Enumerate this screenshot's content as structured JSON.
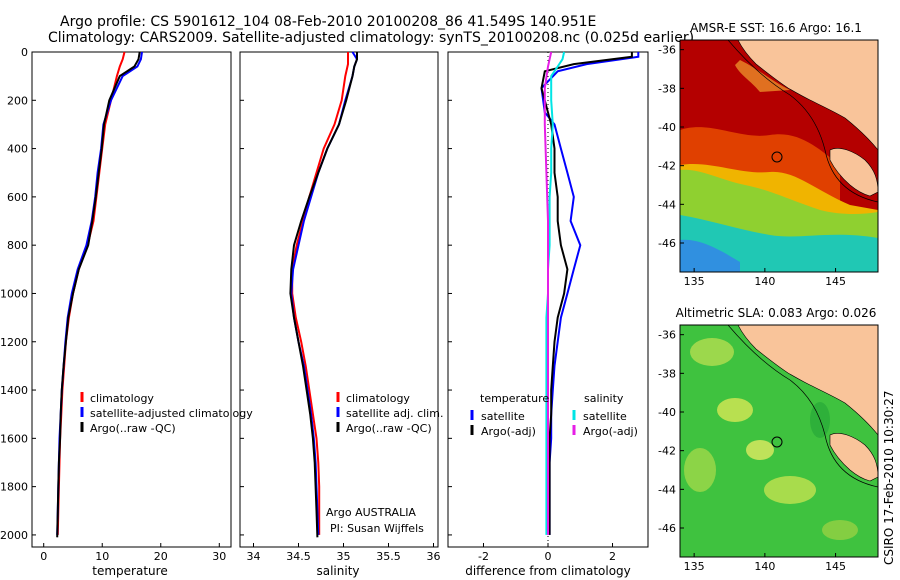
{
  "header": {
    "line1": "Argo profile: CS 5901612_104 08-Feb-2010 20100208_86 41.549S 140.951E",
    "line2": "Climatology: CARS2009. Satellite-adjusted climatology: synTS_20100208.nc (0.025d earlier)"
  },
  "credit": "CSIRO 17-Feb-2010 10:30:27",
  "colors": {
    "climatology": "#ff0000",
    "satellite": "#0000ff",
    "argo": "#000000",
    "satellite_diff_sal": "#00e5e5",
    "argo_diff_sal": "#e61ee6"
  },
  "chart_data": [
    {
      "type": "line",
      "id": "temperature",
      "xlabel": "temperature",
      "xlim": [
        -2,
        32
      ],
      "ylim": [
        0,
        2050
      ],
      "y_reversed": true,
      "xticks": [
        0,
        10,
        20,
        30
      ],
      "yticks": [
        0,
        200,
        400,
        600,
        800,
        1000,
        1200,
        1400,
        1600,
        1800,
        2000
      ],
      "legend": [
        "climatology",
        "satellite-adjusted climatology",
        "Argo(..raw -QC)"
      ],
      "series": [
        {
          "name": "climatology",
          "color": "#ff0000",
          "points": [
            [
              13.8,
              0
            ],
            [
              13.5,
              30
            ],
            [
              13,
              60
            ],
            [
              12.5,
              100
            ],
            [
              11.5,
              200
            ],
            [
              10.5,
              300
            ],
            [
              10,
              400
            ],
            [
              9.5,
              500
            ],
            [
              9,
              600
            ],
            [
              8.5,
              700
            ],
            [
              7.5,
              800
            ],
            [
              6,
              900
            ],
            [
              5,
              1000
            ],
            [
              4.3,
              1100
            ],
            [
              3.8,
              1200
            ],
            [
              3.5,
              1300
            ],
            [
              3.2,
              1400
            ],
            [
              3,
              1500
            ],
            [
              2.8,
              1600
            ],
            [
              2.7,
              1700
            ],
            [
              2.6,
              1800
            ],
            [
              2.5,
              1900
            ],
            [
              2.4,
              2000
            ]
          ]
        },
        {
          "name": "satellite-adjusted climatology",
          "color": "#0000ff",
          "points": [
            [
              16.8,
              0
            ],
            [
              16.6,
              30
            ],
            [
              16,
              60
            ],
            [
              13.5,
              100
            ],
            [
              11.5,
              200
            ],
            [
              10.2,
              300
            ],
            [
              9.8,
              400
            ],
            [
              9.2,
              500
            ],
            [
              8.8,
              600
            ],
            [
              8.2,
              700
            ],
            [
              7.3,
              800
            ],
            [
              5.8,
              900
            ],
            [
              4.8,
              1000
            ],
            [
              4.1,
              1100
            ],
            [
              3.7,
              1200
            ],
            [
              3.4,
              1300
            ],
            [
              3.1,
              1400
            ],
            [
              2.9,
              1500
            ],
            [
              2.7,
              1600
            ],
            [
              2.6,
              1700
            ],
            [
              2.5,
              1800
            ],
            [
              2.4,
              1900
            ],
            [
              2.3,
              2000
            ]
          ]
        },
        {
          "name": "Argo(..raw -QC)",
          "color": "#000000",
          "points": [
            [
              16.4,
              0
            ],
            [
              16.2,
              30
            ],
            [
              15.5,
              60
            ],
            [
              13,
              100
            ],
            [
              11.2,
              200
            ],
            [
              10.3,
              300
            ],
            [
              9.9,
              400
            ],
            [
              9.4,
              500
            ],
            [
              8.9,
              600
            ],
            [
              8.3,
              700
            ],
            [
              7.6,
              800
            ],
            [
              6,
              900
            ],
            [
              5,
              1000
            ],
            [
              4.2,
              1100
            ],
            [
              3.8,
              1200
            ],
            [
              3.4,
              1300
            ],
            [
              3.1,
              1400
            ],
            [
              2.9,
              1500
            ],
            [
              2.8,
              1600
            ],
            [
              2.6,
              1700
            ],
            [
              2.5,
              1800
            ],
            [
              2.4,
              1900
            ],
            [
              2.3,
              2010
            ]
          ]
        }
      ]
    },
    {
      "type": "line",
      "id": "salinity",
      "xlabel": "salinity",
      "xlim": [
        33.85,
        36.05
      ],
      "ylim": [
        0,
        2050
      ],
      "y_reversed": true,
      "xticks": [
        34,
        34.5,
        35,
        35.5,
        36
      ],
      "legend": [
        "climatology",
        "satellite adj. clim.",
        "Argo(..raw -QC)"
      ],
      "annotation": [
        "Argo AUSTRALIA",
        "PI: Susan Wijffels"
      ],
      "series": [
        {
          "name": "climatology",
          "color": "#ff0000",
          "points": [
            [
              35.05,
              0
            ],
            [
              35.05,
              50
            ],
            [
              35.02,
              100
            ],
            [
              34.98,
              200
            ],
            [
              34.9,
              300
            ],
            [
              34.78,
              400
            ],
            [
              34.7,
              500
            ],
            [
              34.62,
              600
            ],
            [
              34.55,
              700
            ],
            [
              34.48,
              800
            ],
            [
              34.43,
              900
            ],
            [
              34.43,
              1000
            ],
            [
              34.47,
              1100
            ],
            [
              34.53,
              1200
            ],
            [
              34.58,
              1300
            ],
            [
              34.62,
              1400
            ],
            [
              34.66,
              1500
            ],
            [
              34.7,
              1600
            ],
            [
              34.72,
              1700
            ],
            [
              34.73,
              1800
            ],
            [
              34.73,
              1900
            ],
            [
              34.73,
              2000
            ]
          ]
        },
        {
          "name": "satellite adj. clim.",
          "color": "#0000ff",
          "points": [
            [
              35.1,
              0
            ],
            [
              35.15,
              30
            ],
            [
              35.12,
              60
            ],
            [
              35.1,
              100
            ],
            [
              35.02,
              200
            ],
            [
              34.95,
              300
            ],
            [
              34.82,
              400
            ],
            [
              34.72,
              500
            ],
            [
              34.64,
              600
            ],
            [
              34.56,
              700
            ],
            [
              34.5,
              800
            ],
            [
              34.44,
              900
            ],
            [
              34.42,
              1000
            ],
            [
              34.45,
              1100
            ],
            [
              34.5,
              1200
            ],
            [
              34.56,
              1300
            ],
            [
              34.6,
              1400
            ],
            [
              34.64,
              1500
            ],
            [
              34.67,
              1600
            ],
            [
              34.69,
              1700
            ],
            [
              34.7,
              1800
            ],
            [
              34.71,
              1900
            ],
            [
              34.72,
              2000
            ]
          ]
        },
        {
          "name": "Argo(..raw -QC)",
          "color": "#000000",
          "points": [
            [
              35.15,
              0
            ],
            [
              35.15,
              30
            ],
            [
              35.12,
              60
            ],
            [
              35.1,
              100
            ],
            [
              35.03,
              200
            ],
            [
              34.95,
              300
            ],
            [
              34.82,
              400
            ],
            [
              34.72,
              500
            ],
            [
              34.62,
              600
            ],
            [
              34.53,
              700
            ],
            [
              34.45,
              800
            ],
            [
              34.42,
              900
            ],
            [
              34.41,
              1000
            ],
            [
              34.45,
              1100
            ],
            [
              34.5,
              1200
            ],
            [
              34.55,
              1300
            ],
            [
              34.59,
              1400
            ],
            [
              34.63,
              1500
            ],
            [
              34.66,
              1600
            ],
            [
              34.68,
              1700
            ],
            [
              34.69,
              1800
            ],
            [
              34.7,
              1900
            ],
            [
              34.71,
              2010
            ]
          ]
        }
      ]
    },
    {
      "type": "line",
      "id": "difference",
      "xlabel": "difference from climatology",
      "xlim": [
        -3.1,
        3.1
      ],
      "ylim": [
        0,
        2050
      ],
      "y_reversed": true,
      "xticks": [
        -2,
        0,
        2
      ],
      "legend_groups": [
        {
          "title": "temperature",
          "items": [
            "satellite",
            "Argo(-adj)"
          ]
        },
        {
          "title": "salinity",
          "items": [
            "satellite",
            "Argo(-adj)"
          ]
        }
      ],
      "series": [
        {
          "name": "satellite",
          "group": "temperature",
          "color": "#0000ff",
          "points": [
            [
              2.8,
              0
            ],
            [
              2.8,
              20
            ],
            [
              1.2,
              50
            ],
            [
              0.3,
              80
            ],
            [
              -0.2,
              150
            ],
            [
              -0.1,
              250
            ],
            [
              0.2,
              300
            ],
            [
              0.4,
              400
            ],
            [
              0.6,
              500
            ],
            [
              0.8,
              600
            ],
            [
              0.7,
              700
            ],
            [
              1.0,
              800
            ],
            [
              0.8,
              900
            ],
            [
              0.6,
              1000
            ],
            [
              0.4,
              1100
            ],
            [
              0.3,
              1200
            ],
            [
              0.2,
              1300
            ],
            [
              0.15,
              1400
            ],
            [
              0.1,
              1500
            ],
            [
              0.1,
              1600
            ],
            [
              0.05,
              1700
            ],
            [
              0.05,
              1800
            ],
            [
              0.05,
              1900
            ],
            [
              0.05,
              2000
            ]
          ]
        },
        {
          "name": "Argo(-adj)",
          "group": "temperature",
          "color": "#000000",
          "points": [
            [
              2.6,
              0
            ],
            [
              2.6,
              20
            ],
            [
              0.8,
              50
            ],
            [
              -0.1,
              80
            ],
            [
              -0.2,
              150
            ],
            [
              0.1,
              300
            ],
            [
              0.2,
              400
            ],
            [
              0.2,
              500
            ],
            [
              0.3,
              600
            ],
            [
              0.3,
              700
            ],
            [
              0.4,
              800
            ],
            [
              0.6,
              900
            ],
            [
              0.5,
              1000
            ],
            [
              0.3,
              1100
            ],
            [
              0.2,
              1200
            ],
            [
              0.15,
              1300
            ],
            [
              0.1,
              1400
            ],
            [
              0.1,
              1500
            ],
            [
              0.05,
              1600
            ],
            [
              0.05,
              1700
            ],
            [
              0.05,
              1800
            ],
            [
              0.05,
              1900
            ],
            [
              0.05,
              2000
            ]
          ]
        },
        {
          "name": "satellite",
          "group": "salinity",
          "color": "#00e5e5",
          "points": [
            [
              0.5,
              0
            ],
            [
              0.45,
              30
            ],
            [
              0.3,
              60
            ],
            [
              0.1,
              100
            ],
            [
              0.1,
              200
            ],
            [
              0.15,
              300
            ],
            [
              0.1,
              400
            ],
            [
              0.1,
              500
            ],
            [
              0.05,
              600
            ],
            [
              0.05,
              700
            ],
            [
              0.05,
              800
            ],
            [
              0,
              900
            ],
            [
              0,
              1000
            ],
            [
              -0.05,
              1100
            ],
            [
              -0.05,
              1200
            ],
            [
              -0.05,
              1300
            ],
            [
              -0.05,
              1400
            ],
            [
              -0.05,
              1500
            ],
            [
              -0.05,
              1600
            ],
            [
              -0.05,
              1700
            ],
            [
              -0.05,
              1800
            ],
            [
              -0.05,
              1900
            ],
            [
              -0.05,
              2000
            ]
          ]
        },
        {
          "name": "Argo(-adj)",
          "group": "salinity",
          "color": "#e61ee6",
          "points": [
            [
              0.1,
              0
            ],
            [
              0.05,
              30
            ],
            [
              0,
              60
            ],
            [
              -0.1,
              150
            ],
            [
              -0.1,
              300
            ],
            [
              -0.05,
              500
            ],
            [
              0,
              700
            ],
            [
              0,
              900
            ],
            [
              0,
              1100
            ],
            [
              0,
              1300
            ],
            [
              0,
              1500
            ],
            [
              0,
              1700
            ],
            [
              0,
              1900
            ],
            [
              0,
              2000
            ]
          ]
        }
      ]
    },
    {
      "type": "heatmap",
      "id": "sst-map",
      "title": "AMSR-E SST: 16.6 Argo: 16.1",
      "xlim": [
        134,
        148
      ],
      "ylim": [
        -47.5,
        -35.5
      ],
      "xticks": [
        135,
        140,
        145
      ],
      "yticks": [
        -36,
        -38,
        -40,
        -42,
        -44,
        -46
      ],
      "marker": {
        "lon": 140.951,
        "lat": -41.549
      }
    },
    {
      "type": "heatmap",
      "id": "sla-map",
      "title": "Altimetric SLA: 0.083 Argo: 0.026",
      "xlim": [
        134,
        148
      ],
      "ylim": [
        -47.5,
        -35.5
      ],
      "xticks": [
        135,
        140,
        145
      ],
      "yticks": [
        -36,
        -38,
        -40,
        -42,
        -44,
        -46
      ],
      "marker": {
        "lon": 140.951,
        "lat": -41.549
      }
    }
  ]
}
